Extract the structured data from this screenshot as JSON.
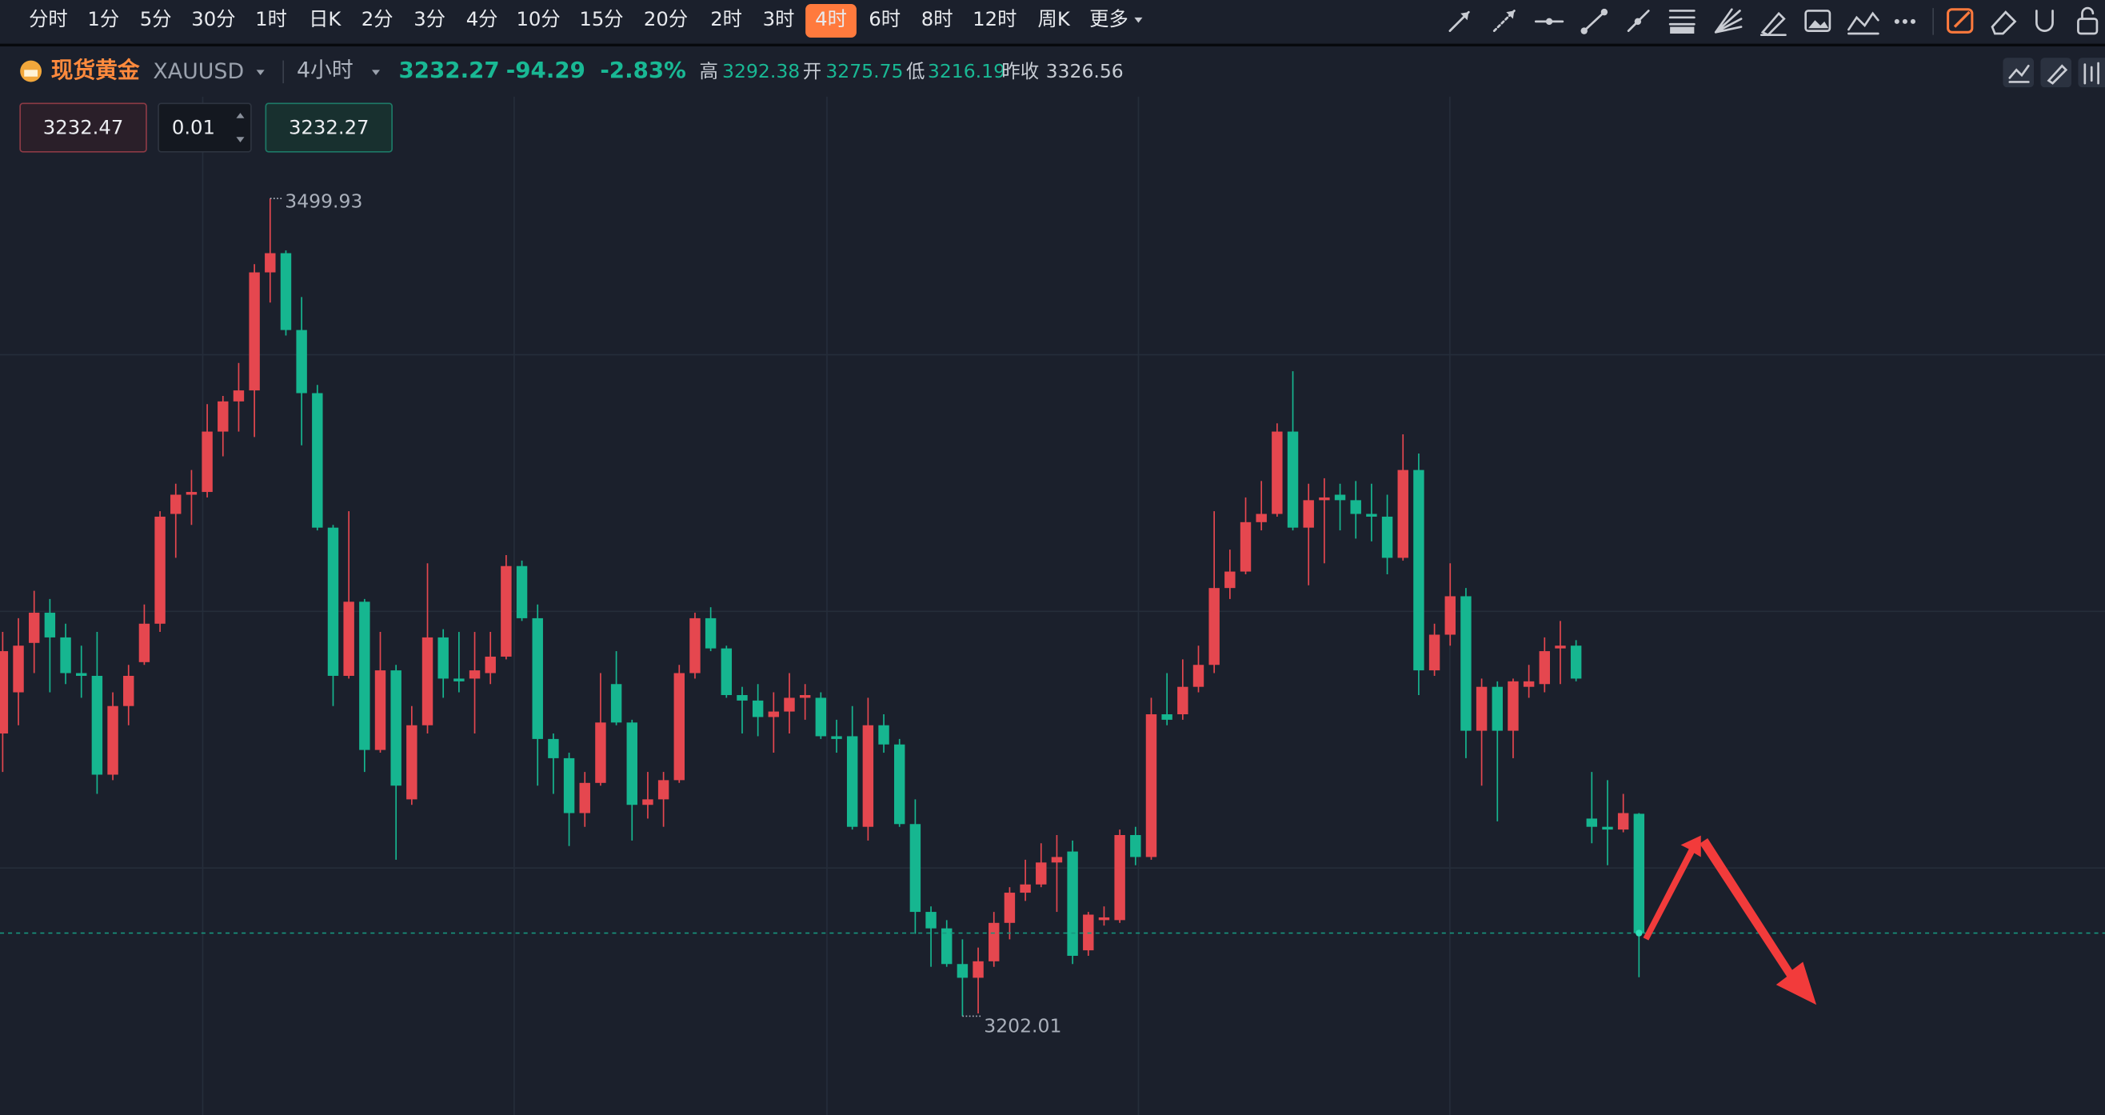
{
  "toolbar": {
    "intervals": [
      "分时",
      "1分",
      "5分",
      "30分",
      "1时",
      "日K",
      "2分",
      "3分",
      "4分",
      "10分",
      "15分",
      "20分",
      "2时",
      "3时",
      "4时",
      "6时",
      "8时",
      "12时",
      "周K"
    ],
    "active": "4时",
    "more": "更多"
  },
  "quote": {
    "name": "现货黄金",
    "symbol": "XAUUSD",
    "period": "4小时",
    "price": "3232.27",
    "change": "-94.29",
    "change_pct": "-2.83%",
    "stats": [
      {
        "label": "高",
        "value": "3292.38"
      },
      {
        "label": "开",
        "value": "3275.75"
      },
      {
        "label": "低",
        "value": "3216.19"
      },
      {
        "label": "昨收",
        "value": "3326.56"
      }
    ]
  },
  "order": {
    "sell": "3232.47",
    "lots": "0.01",
    "buy": "3232.27"
  },
  "chart_data": {
    "type": "candlestick",
    "up_color": "#e5474f",
    "down_color": "#16b690",
    "ylim": [
      3166,
      3537
    ],
    "yticks": [
      3443,
      3349.5,
      3256
    ],
    "grid": true,
    "ohlc": [
      [
        3305,
        3342,
        3291,
        3335
      ],
      [
        3320,
        3347,
        3308,
        3337
      ],
      [
        3338,
        3357,
        3327,
        3349
      ],
      [
        3349,
        3354,
        3320,
        3340
      ],
      [
        3340,
        3345,
        3323,
        3327
      ],
      [
        3327,
        3337,
        3318,
        3326
      ],
      [
        3326,
        3342,
        3283,
        3290
      ],
      [
        3290,
        3320,
        3288,
        3315
      ],
      [
        3315,
        3330,
        3308,
        3326
      ],
      [
        3331,
        3352,
        3330,
        3345
      ],
      [
        3345,
        3386,
        3342,
        3384
      ],
      [
        3385,
        3396,
        3369,
        3392
      ],
      [
        3392,
        3401,
        3381,
        3393
      ],
      [
        3393,
        3425,
        3391,
        3415
      ],
      [
        3415,
        3428,
        3406,
        3426
      ],
      [
        3426,
        3440,
        3415,
        3430
      ],
      [
        3430,
        3476,
        3413,
        3473
      ],
      [
        3473,
        3499.93,
        3462,
        3480
      ],
      [
        3480,
        3481,
        3450,
        3452
      ],
      [
        3452,
        3464,
        3410,
        3429
      ],
      [
        3429,
        3432,
        3379,
        3380
      ],
      [
        3380,
        3381,
        3315,
        3326
      ],
      [
        3326,
        3386,
        3325,
        3353
      ],
      [
        3353,
        3354,
        3291,
        3299
      ],
      [
        3299,
        3342,
        3298,
        3328
      ],
      [
        3328,
        3330,
        3259,
        3286
      ],
      [
        3281,
        3315,
        3279,
        3308
      ],
      [
        3308,
        3367,
        3305,
        3340
      ],
      [
        3340,
        3343,
        3318,
        3325
      ],
      [
        3325,
        3342,
        3320,
        3324
      ],
      [
        3325,
        3342,
        3305,
        3328
      ],
      [
        3327,
        3342,
        3323,
        3333
      ],
      [
        3333,
        3370,
        3332,
        3366
      ],
      [
        3366,
        3368,
        3346,
        3347
      ],
      [
        3347,
        3352,
        3286,
        3303
      ],
      [
        3303,
        3305,
        3283,
        3296
      ],
      [
        3296,
        3298,
        3264,
        3276
      ],
      [
        3276,
        3291,
        3271,
        3287
      ],
      [
        3287,
        3327,
        3286,
        3309
      ],
      [
        3323,
        3335,
        3308,
        3309
      ],
      [
        3309,
        3310,
        3266,
        3279
      ],
      [
        3279,
        3291,
        3274,
        3281
      ],
      [
        3281,
        3291,
        3271,
        3288
      ],
      [
        3288,
        3330,
        3287,
        3327
      ],
      [
        3327,
        3349,
        3325,
        3347
      ],
      [
        3347,
        3351,
        3335,
        3336
      ],
      [
        3336,
        3337,
        3318,
        3319
      ],
      [
        3319,
        3322,
        3305,
        3317
      ],
      [
        3317,
        3323,
        3304,
        3311
      ],
      [
        3311,
        3320,
        3298,
        3313
      ],
      [
        3313,
        3327,
        3305,
        3318
      ],
      [
        3318,
        3323,
        3310,
        3319
      ],
      [
        3318,
        3320,
        3303,
        3304
      ],
      [
        3304,
        3310,
        3298,
        3303
      ],
      [
        3304,
        3315,
        3270,
        3271
      ],
      [
        3271,
        3318,
        3266,
        3308
      ],
      [
        3308,
        3312,
        3298,
        3301
      ],
      [
        3301,
        3303,
        3271,
        3272
      ],
      [
        3272,
        3281,
        3232,
        3240
      ],
      [
        3240,
        3242,
        3220,
        3234
      ],
      [
        3234,
        3237,
        3220,
        3221
      ],
      [
        3221,
        3230,
        3202.01,
        3216
      ],
      [
        3216,
        3227,
        3203,
        3222
      ],
      [
        3222,
        3240,
        3220,
        3236
      ],
      [
        3236,
        3249,
        3230,
        3247
      ],
      [
        3247,
        3259,
        3244,
        3250
      ],
      [
        3250,
        3265,
        3249,
        3258
      ],
      [
        3258,
        3268,
        3240,
        3260
      ],
      [
        3262,
        3266,
        3221,
        3224
      ],
      [
        3226,
        3240,
        3224,
        3239
      ],
      [
        3237,
        3242,
        3235,
        3238
      ],
      [
        3237,
        3270,
        3236,
        3268
      ],
      [
        3268,
        3271,
        3257,
        3260
      ],
      [
        3260,
        3318,
        3259,
        3312
      ],
      [
        3312,
        3327,
        3308,
        3310
      ],
      [
        3312,
        3332,
        3310,
        3322
      ],
      [
        3322,
        3337,
        3320,
        3330
      ],
      [
        3330,
        3386,
        3327,
        3358
      ],
      [
        3358,
        3372,
        3354,
        3364
      ],
      [
        3364,
        3391,
        3363,
        3382
      ],
      [
        3382,
        3397,
        3379,
        3385
      ],
      [
        3385,
        3418,
        3384,
        3415
      ],
      [
        3415,
        3437,
        3379,
        3380
      ],
      [
        3380,
        3396,
        3359,
        3390
      ],
      [
        3390,
        3398,
        3367,
        3391
      ],
      [
        3392,
        3396,
        3379,
        3390
      ],
      [
        3390,
        3397,
        3376,
        3385
      ],
      [
        3385,
        3396,
        3375,
        3384
      ],
      [
        3384,
        3392,
        3363,
        3369
      ],
      [
        3369,
        3414,
        3368,
        3401
      ],
      [
        3401,
        3407,
        3319,
        3328
      ],
      [
        3328,
        3345,
        3326,
        3341
      ],
      [
        3341,
        3367,
        3337,
        3355
      ],
      [
        3355,
        3358,
        3296,
        3306
      ],
      [
        3306,
        3325,
        3286,
        3322
      ],
      [
        3322,
        3324,
        3273,
        3306
      ],
      [
        3306,
        3325,
        3296,
        3324
      ],
      [
        3322,
        3330,
        3318,
        3324
      ],
      [
        3323,
        3340,
        3320,
        3335
      ],
      [
        3336,
        3346,
        3323,
        3337
      ],
      [
        3337,
        3339,
        3324,
        3325
      ],
      [
        3274,
        3291,
        3265,
        3271
      ],
      [
        3271,
        3288,
        3257,
        3270
      ],
      [
        3270,
        3283,
        3269,
        3276
      ],
      [
        3275.75,
        3276,
        3216.19,
        3232.27
      ]
    ]
  }
}
